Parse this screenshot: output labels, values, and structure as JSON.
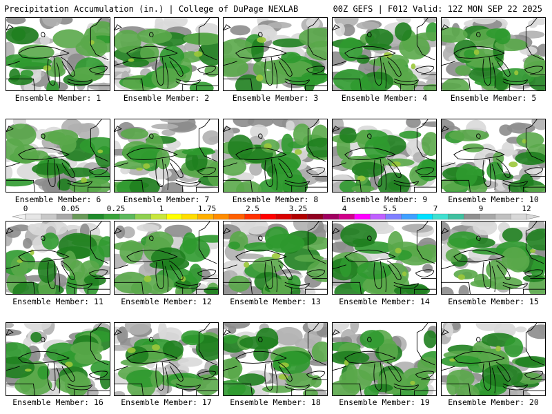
{
  "header": {
    "title_left": "Precipitation Accumulation (in.) | College of DuPage NEXLAB",
    "title_right": "00Z GEFS | F012 Valid: 12Z MON SEP 22 2025"
  },
  "panels": [
    {
      "label": "Ensemble Member: 1"
    },
    {
      "label": "Ensemble Member: 2"
    },
    {
      "label": "Ensemble Member: 3"
    },
    {
      "label": "Ensemble Member: 4"
    },
    {
      "label": "Ensemble Member: 5"
    },
    {
      "label": "Ensemble Member: 6"
    },
    {
      "label": "Ensemble Member: 7"
    },
    {
      "label": "Ensemble Member: 8"
    },
    {
      "label": "Ensemble Member: 9"
    },
    {
      "label": "Ensemble Member: 10"
    },
    {
      "label": "Ensemble Member: 11"
    },
    {
      "label": "Ensemble Member: 12"
    },
    {
      "label": "Ensemble Member: 13"
    },
    {
      "label": "Ensemble Member: 14"
    },
    {
      "label": "Ensemble Member: 15"
    },
    {
      "label": "Ensemble Member: 16"
    },
    {
      "label": "Ensemble Member: 17"
    },
    {
      "label": "Ensemble Member: 18"
    },
    {
      "label": "Ensemble Member: 19"
    },
    {
      "label": "Ensemble Member: 20"
    }
  ],
  "legend": {
    "tick_labels": [
      "0",
      "0.05",
      "0.25",
      "1",
      "1.75",
      "2.5",
      "3.25",
      "4",
      "5.5",
      "7",
      "9",
      "12"
    ],
    "colors": [
      "#e6e6e6",
      "#c8c8c8",
      "#a8a8a8",
      "#6a9a5a",
      "#1f8a2a",
      "#3aa23a",
      "#5cb85c",
      "#8fd04f",
      "#c8e63c",
      "#ffff00",
      "#ffdd00",
      "#ffb000",
      "#ff8c00",
      "#ff6000",
      "#ff3000",
      "#ff0000",
      "#d80000",
      "#b00000",
      "#900020",
      "#a00060",
      "#d0008a",
      "#ff00ff",
      "#c060ff",
      "#8080ff",
      "#40a0ff",
      "#00e0ff",
      "#40e0d0",
      "#40c0a0",
      "#909090",
      "#a8a8a8",
      "#c0c0c0",
      "#d8d8d8"
    ]
  },
  "map_colors": {
    "light_gray": "#d9d9d9",
    "mid_gray": "#b0b0b0",
    "dark_gray": "#8c8c8c",
    "light_green": "#5aa84a",
    "green": "#2f9a2f",
    "dark_green": "#1f7f1f",
    "yellow_green": "#9bc83a"
  }
}
